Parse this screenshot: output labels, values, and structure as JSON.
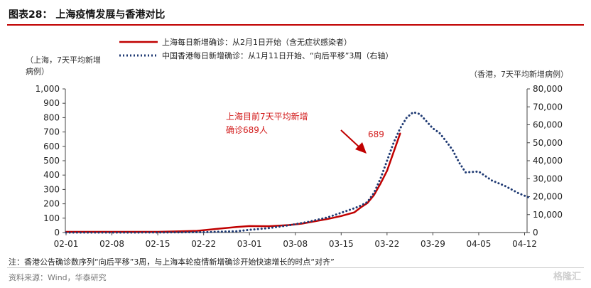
{
  "header": {
    "title": "图表28： 上海疫情发展与香港对比"
  },
  "note": "注：香港公告确诊数序列“向后平移”3周，与上海本轮疫情新增确诊开始快速增长的时点“对齐”",
  "source": "资料来源：Wind，华泰研究",
  "brand": "格隆汇",
  "chart_data": {
    "type": "line",
    "x_tick_labels": [
      "02-01",
      "02-08",
      "02-15",
      "02-22",
      "03-01",
      "03-08",
      "03-15",
      "03-22",
      "03-29",
      "04-05",
      "04-12"
    ],
    "left_axis": {
      "title_lines": [
        "（上海，7天平均新增",
        "病例）"
      ],
      "ylim": [
        0,
        1000
      ],
      "ticks": [
        "0",
        "100",
        "200",
        "300",
        "400",
        "500",
        "600",
        "700",
        "800",
        "900",
        "1,000"
      ]
    },
    "right_axis": {
      "title": "（香港，7天平均新增病例）",
      "ylim": [
        0,
        80000
      ],
      "ticks": [
        "0",
        "10,000",
        "20,000",
        "30,000",
        "40,000",
        "50,000",
        "60,000",
        "70,000",
        "80,000"
      ]
    },
    "series": [
      {
        "name": "上海每日新增确诊：从2月1日开始（含无症状感染者）",
        "axis": "left",
        "color": "#c00000",
        "style": "solid",
        "x": [
          "02-01",
          "02-08",
          "02-15",
          "02-18",
          "02-21",
          "02-24",
          "02-27",
          "03-01",
          "03-04",
          "03-07",
          "03-09",
          "03-11",
          "03-13",
          "03-15",
          "03-17",
          "03-18",
          "03-19",
          "03-20",
          "03-21",
          "03-22",
          "03-23",
          "03-24"
        ],
        "y": [
          5,
          5,
          5,
          8,
          12,
          25,
          38,
          45,
          44,
          52,
          62,
          78,
          95,
          115,
          140,
          175,
          205,
          260,
          340,
          430,
          560,
          689
        ]
      },
      {
        "name": "中国香港每日新增确诊：从1月11日开始、“向后平移”3周（右轴）",
        "axis": "right",
        "color": "#1f3a73",
        "style": "dotted",
        "x": [
          "02-01",
          "02-08",
          "02-15",
          "02-22",
          "02-27",
          "03-01",
          "03-04",
          "03-07",
          "03-10",
          "03-13",
          "03-15",
          "03-17",
          "03-18",
          "03-19",
          "03-20",
          "03-21",
          "03-22",
          "03-23",
          "03-24",
          "03-25",
          "03-26",
          "03-27",
          "03-28",
          "03-29",
          "03-30",
          "03-31",
          "04-01",
          "04-02",
          "04-03",
          "04-05",
          "04-07",
          "04-09",
          "04-11",
          "04-13"
        ],
        "y": [
          0,
          0,
          30,
          200,
          700,
          1500,
          2500,
          4000,
          6000,
          8500,
          11000,
          13500,
          15000,
          17000,
          22000,
          30000,
          40000,
          50000,
          58000,
          64000,
          67000,
          66000,
          62000,
          58000,
          55500,
          51000,
          46000,
          39000,
          33500,
          34000,
          29000,
          26000,
          22000,
          19000
        ]
      }
    ],
    "annotation": {
      "label_lines": [
        "上海目前7天平均新增",
        "确诊689人"
      ],
      "value_label": "689"
    },
    "grid": false,
    "legend_position": "top"
  }
}
